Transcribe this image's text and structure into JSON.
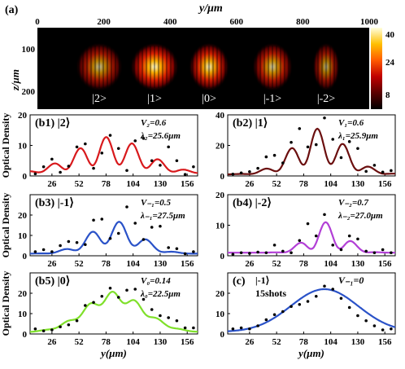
{
  "panel_a": {
    "label": "(a)",
    "xlabel": "y/μm",
    "ylabel": "z/μm",
    "xticks": [
      "0",
      "200",
      "400",
      "600",
      "800",
      "1000"
    ],
    "yticks": [
      "100",
      "200"
    ],
    "colorbar_ticks": [
      "40",
      "24",
      "8"
    ],
    "state_labels": [
      "|2>",
      "|1>",
      "|0>",
      "|-1>",
      "|-2>"
    ],
    "colormap": [
      "#000000",
      "#3a0000",
      "#8a0000",
      "#d01a00",
      "#ff6a00",
      "#ffc000",
      "#ffffc0"
    ],
    "blob_intensity": [
      0.55,
      0.95,
      0.85,
      0.65,
      0.45
    ]
  },
  "chart_data": [
    {
      "type": "line",
      "label": "(b1) |2⟩",
      "color": "#d8191c",
      "ylabel": "Optical Density",
      "xlabel": "",
      "xticks": [
        "26",
        "52",
        "78",
        "104",
        "130",
        "156"
      ],
      "ylim": [
        0,
        20
      ],
      "yticks": [
        0,
        10,
        20
      ],
      "annotations": [
        "V₂=0.6",
        "λ₂=25.6μm"
      ],
      "fit": {
        "offset": 0.8,
        "env_amp": 12.0,
        "center": 82,
        "env_w": 50,
        "period": 25.6,
        "phase": 78,
        "vis": 0.6
      },
      "points": {
        "x": [
          10,
          18,
          26,
          34,
          42,
          50,
          58,
          66,
          74,
          82,
          90,
          98,
          106,
          114,
          122,
          130,
          138,
          146,
          154,
          162
        ],
        "y": [
          0.7,
          3.0,
          5.5,
          1.2,
          3.2,
          9.5,
          10.5,
          2.5,
          7.5,
          13.3,
          9.0,
          1.8,
          11.5,
          12.3,
          5.0,
          3.5,
          9.5,
          5.0,
          0.5,
          3.0
        ]
      }
    },
    {
      "type": "line",
      "label": "(b2) |1⟩",
      "color": "#6b0f0f",
      "ylabel": "",
      "xlabel": "",
      "xticks": [
        "26",
        "52",
        "78",
        "104",
        "130",
        "156"
      ],
      "ylim": [
        0,
        40
      ],
      "yticks": [
        0,
        20,
        40
      ],
      "annotations": [
        "V₁=0.6",
        "λ₁=25.9μm"
      ],
      "fit": {
        "offset": 1.0,
        "env_amp": 30.0,
        "center": 93,
        "env_w": 38,
        "period": 25.9,
        "phase": 91,
        "vis": 0.6
      },
      "points": {
        "x": [
          10,
          18,
          26,
          34,
          42,
          50,
          58,
          66,
          74,
          82,
          90,
          98,
          106,
          114,
          122,
          130,
          138,
          146,
          154,
          162
        ],
        "y": [
          1.2,
          2.0,
          2.8,
          5.0,
          12.5,
          13.5,
          8.5,
          22.0,
          31.0,
          19.0,
          20.5,
          38.0,
          24.0,
          12.0,
          22.5,
          18.0,
          3.0,
          7.0,
          2.5,
          3.5
        ]
      }
    },
    {
      "type": "line",
      "label": "(b3) |-1⟩",
      "color": "#2a52c8",
      "ylabel": "Optical Density",
      "xlabel": "",
      "xticks": [
        "26",
        "52",
        "78",
        "104",
        "130",
        "156"
      ],
      "ylim": [
        0,
        30
      ],
      "yticks": [
        0,
        10,
        20
      ],
      "annotations": [
        "V₋₁=0.5",
        "λ₋₁=27.5μm"
      ],
      "fit": {
        "offset": 1.0,
        "env_amp": 16.0,
        "center": 86,
        "env_w": 36,
        "period": 27.5,
        "phase": 91,
        "vis": 0.5
      },
      "points": {
        "x": [
          10,
          18,
          26,
          34,
          42,
          50,
          58,
          66,
          74,
          82,
          90,
          98,
          106,
          114,
          122,
          130,
          138,
          146,
          154,
          162
        ],
        "y": [
          2.0,
          3.0,
          2.0,
          5.0,
          7.0,
          6.5,
          5.5,
          17.5,
          18.0,
          8.5,
          11.0,
          24.0,
          16.0,
          8.0,
          14.0,
          14.5,
          4.0,
          3.5,
          1.0,
          2.0
        ]
      }
    },
    {
      "type": "line",
      "label": "(b4) |-2⟩",
      "color": "#b23fd6",
      "ylabel": "",
      "xlabel": "",
      "xticks": [
        "26",
        "52",
        "78",
        "104",
        "130",
        "156"
      ],
      "ylim": [
        0,
        20
      ],
      "yticks": [
        0,
        10,
        20
      ],
      "annotations": [
        "V₋₂=0.7",
        "λ₋₂=27.0μm"
      ],
      "fit": {
        "offset": 1.0,
        "env_amp": 10.0,
        "center": 100,
        "env_w": 26,
        "period": 27.0,
        "phase": 99,
        "vis": 0.7
      },
      "points": {
        "x": [
          10,
          18,
          26,
          34,
          42,
          50,
          58,
          66,
          74,
          82,
          90,
          98,
          106,
          114,
          122,
          130,
          138,
          146,
          154,
          162
        ],
        "y": [
          0.5,
          1.0,
          0.8,
          1.2,
          1.0,
          3.5,
          1.5,
          1.0,
          5.0,
          10.5,
          6.5,
          13.5,
          3.5,
          2.0,
          6.5,
          5.5,
          1.5,
          1.0,
          2.0,
          1.0
        ]
      }
    },
    {
      "type": "line",
      "label": "(b5) |0⟩",
      "color": "#7fe02a",
      "ylabel": "Optical Density",
      "xlabel": "y(μm)",
      "xticks": [
        "26",
        "52",
        "78",
        "104",
        "130",
        "156"
      ],
      "ylim": [
        0,
        30
      ],
      "yticks": [
        0,
        10,
        20
      ],
      "annotations": [
        "V₀=0.14",
        "λ₀=22.5μm"
      ],
      "fit": {
        "offset": 0.8,
        "env_amp": 20.0,
        "center": 86,
        "env_w": 42,
        "period": 22.5,
        "phase": 84,
        "vis": 0.14
      },
      "points": {
        "x": [
          10,
          18,
          26,
          34,
          42,
          50,
          58,
          66,
          74,
          82,
          90,
          98,
          106,
          114,
          122,
          130,
          138,
          146,
          154,
          162
        ],
        "y": [
          2.5,
          1.5,
          2.0,
          3.5,
          4.5,
          6.5,
          14.0,
          15.5,
          18.5,
          22.5,
          18.0,
          21.5,
          22.0,
          17.0,
          12.0,
          9.0,
          8.0,
          6.5,
          3.0,
          3.0
        ]
      }
    },
    {
      "type": "line",
      "label": "(c)",
      "color": "#2a52c8",
      "ylabel": "",
      "xlabel": "y(μm)",
      "xticks": [
        "26",
        "52",
        "78",
        "104",
        "130",
        "156"
      ],
      "ylim": [
        0,
        30
      ],
      "yticks": [
        0,
        10,
        20
      ],
      "annotations": [
        "|-1⟩",
        "15shots",
        "V₋₁=0"
      ],
      "fit": {
        "offset": 1.0,
        "env_amp": 21.0,
        "center": 98,
        "env_w": 48,
        "period": 27.5,
        "phase": 0,
        "vis": 0
      },
      "points": {
        "x": [
          10,
          18,
          26,
          34,
          42,
          50,
          58,
          66,
          74,
          82,
          90,
          98,
          106,
          114,
          122,
          130,
          138,
          146,
          154,
          162
        ],
        "y": [
          2.5,
          3.0,
          2.5,
          4.0,
          7.0,
          9.5,
          11.0,
          13.5,
          14.5,
          16.0,
          18.5,
          23.5,
          22.0,
          17.5,
          13.0,
          9.0,
          6.5,
          4.0,
          2.0,
          2.5
        ]
      }
    }
  ]
}
